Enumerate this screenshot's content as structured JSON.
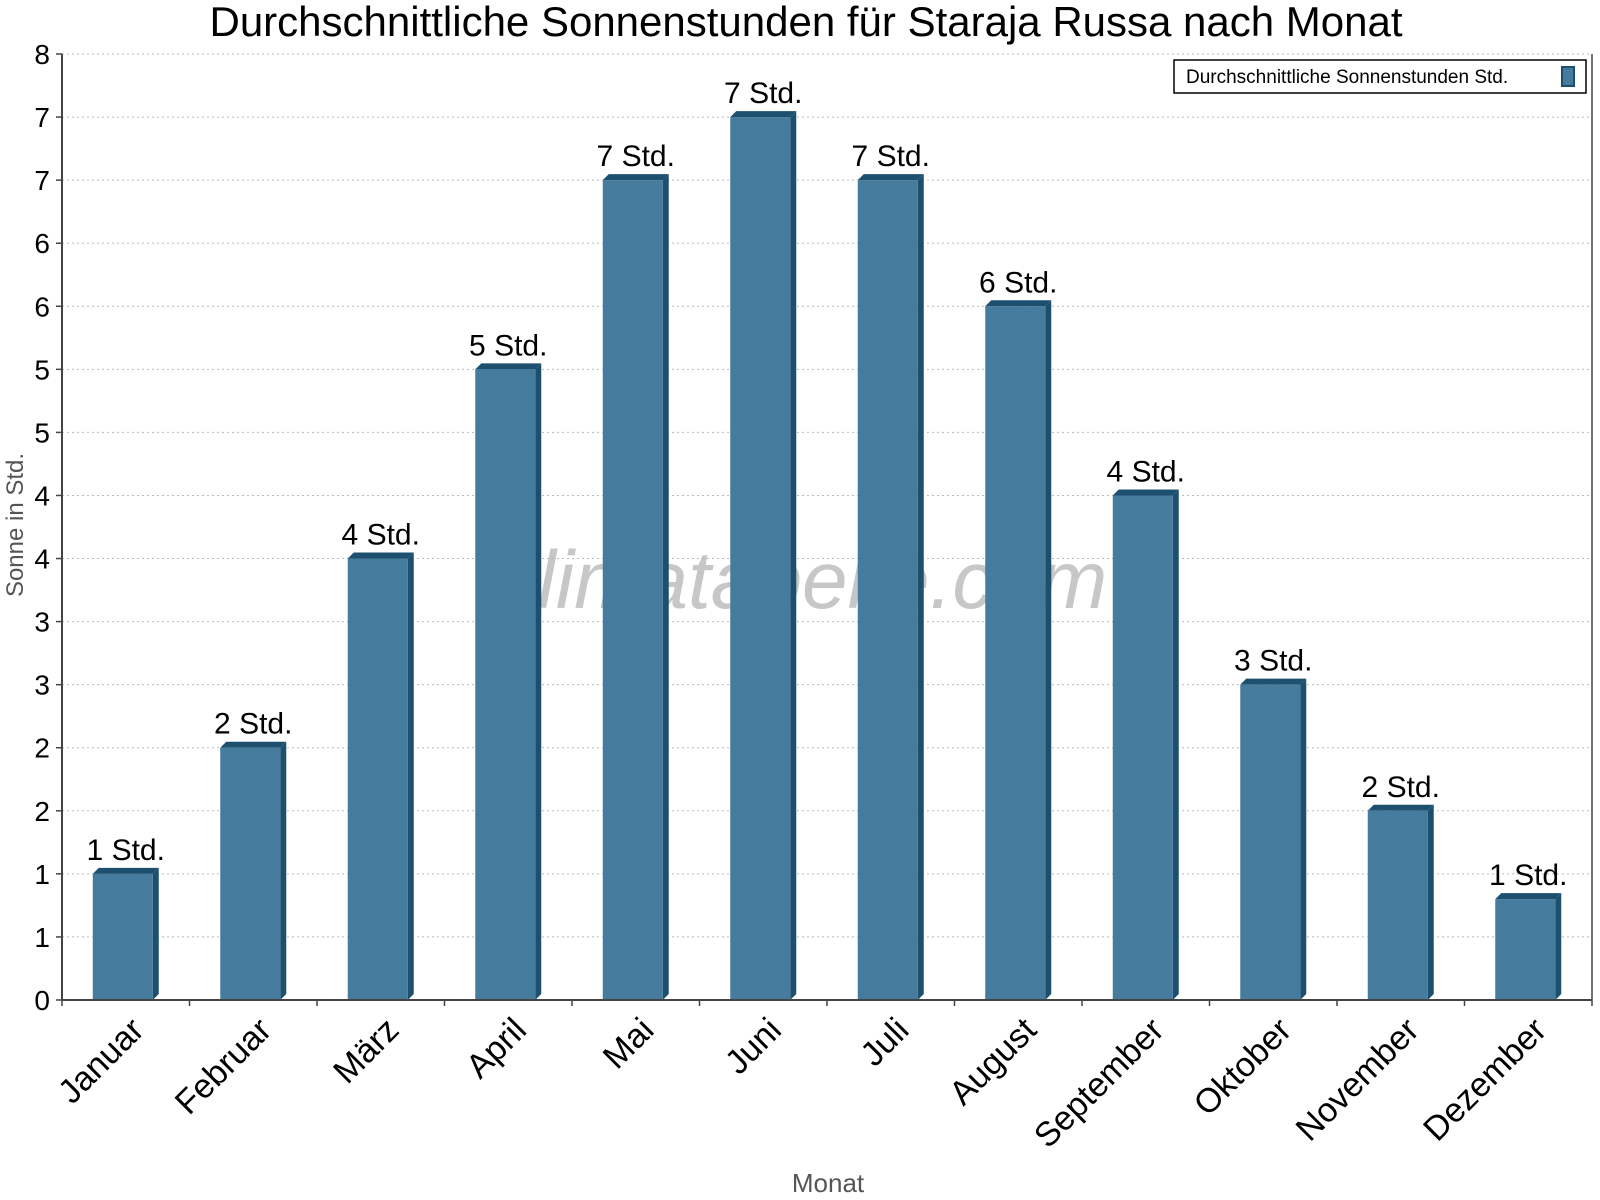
{
  "chart_data": {
    "type": "bar",
    "title": "Durchschnittliche Sonnenstunden für Staraja Russa nach Monat",
    "xlabel": "Monat",
    "ylabel": "Sonne in Std.",
    "ylim": [
      0,
      7.5
    ],
    "y_ticks": [
      {
        "value": 0,
        "label": "0"
      },
      {
        "value": 0.5,
        "label": "1"
      },
      {
        "value": 1,
        "label": "1"
      },
      {
        "value": 1.5,
        "label": "2"
      },
      {
        "value": 2,
        "label": "2"
      },
      {
        "value": 2.5,
        "label": "3"
      },
      {
        "value": 3,
        "label": "3"
      },
      {
        "value": 3.5,
        "label": "4"
      },
      {
        "value": 4,
        "label": "4"
      },
      {
        "value": 4.5,
        "label": "5"
      },
      {
        "value": 5,
        "label": "5"
      },
      {
        "value": 5.5,
        "label": "6"
      },
      {
        "value": 6,
        "label": "6"
      },
      {
        "value": 6.5,
        "label": "7"
      },
      {
        "value": 7,
        "label": "7"
      },
      {
        "value": 7.5,
        "label": "8"
      }
    ],
    "grid": true,
    "legend_position": "top-right",
    "categories": [
      "Januar",
      "Februar",
      "März",
      "April",
      "Mai",
      "Juni",
      "Juli",
      "August",
      "September",
      "Oktober",
      "November",
      "Dezember"
    ],
    "series": [
      {
        "name": "Durchschnittliche Sonnenstunden Std.",
        "color": "#457b9d",
        "values": [
          1.0,
          2.0,
          3.5,
          5.0,
          6.5,
          7.0,
          6.5,
          5.5,
          4.0,
          2.5,
          1.5,
          0.8
        ],
        "data_labels": [
          "1 Std.",
          "2 Std.",
          "4 Std.",
          "5 Std.",
          "7 Std.",
          "7 Std.",
          "7 Std.",
          "6 Std.",
          "4 Std.",
          "3 Std.",
          "2 Std.",
          "1 Std."
        ]
      }
    ],
    "watermark": "klimatabelle.com"
  }
}
